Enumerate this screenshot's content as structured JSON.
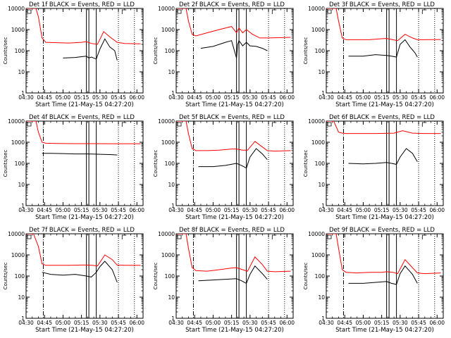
{
  "chart_data": [
    {
      "type": "line",
      "title": "Det 1f BLACK = Events, RED = LLD",
      "xlabel": "Start Time (21-May-15 04:27:20)",
      "ylabel": "Counts/sec",
      "yscale": "log",
      "ylim": [
        1,
        10000
      ],
      "xlim": [
        "04:30",
        "06:05"
      ],
      "grid": false,
      "x_ticks": [
        "04:30",
        "04:45",
        "05:00",
        "05:15",
        "05:30",
        "05:45",
        "06:00"
      ],
      "y_ticks": [
        "1",
        "10",
        "100",
        "1000",
        "10000"
      ],
      "vertical_markers": {
        "dashdot": [
          "04:44"
        ],
        "solid": [
          "05:19",
          "05:21",
          "05:27"
        ],
        "dotted": [
          "05:45",
          "05:58"
        ]
      },
      "series": [
        {
          "name": "Events",
          "color": "#000000",
          "x": [
            "05:00",
            "05:10",
            "05:15",
            "05:19",
            "05:21",
            "05:23",
            "05:27",
            "05:30",
            "05:34",
            "05:38",
            "05:42",
            "05:44"
          ],
          "values": [
            45,
            48,
            52,
            55,
            45,
            50,
            40,
            120,
            360,
            150,
            100,
            35
          ]
        },
        {
          "name": "LLD",
          "color": "#ff0000",
          "x": [
            "04:30",
            "04:38",
            "04:40",
            "04:43",
            "04:46",
            "04:55",
            "05:05",
            "05:15",
            "05:19",
            "05:23",
            "05:28",
            "05:33",
            "05:38",
            "05:44",
            "05:50",
            "06:03"
          ],
          "values": [
            10000,
            10000,
            4000,
            400,
            250,
            240,
            230,
            250,
            270,
            220,
            200,
            800,
            450,
            250,
            220,
            210
          ]
        }
      ]
    },
    {
      "type": "line",
      "title": "Det 2f BLACK = Events, RED = LLD",
      "xlabel": "Start Time (21-May-15 04:27:20)",
      "ylabel": "Counts/sec",
      "yscale": "log",
      "ylim": [
        1,
        10000
      ],
      "xlim": [
        "04:30",
        "06:05"
      ],
      "grid": false,
      "x_ticks": [
        "04:30",
        "04:45",
        "05:00",
        "05:15",
        "05:30",
        "05:45",
        "06:00"
      ],
      "y_ticks": [
        "1",
        "10",
        "100",
        "1000",
        "10000"
      ],
      "vertical_markers": {
        "dashdot": [
          "04:44"
        ],
        "solid": [
          "05:19",
          "05:21",
          "05:27"
        ],
        "dotted": [
          "05:45",
          "05:58"
        ]
      },
      "series": [
        {
          "name": "Events",
          "color": "#000000",
          "x": [
            "04:50",
            "05:00",
            "05:10",
            "05:15",
            "05:19",
            "05:20",
            "05:21",
            "05:24",
            "05:27",
            "05:30",
            "05:35",
            "05:40",
            "05:44"
          ],
          "values": [
            130,
            160,
            250,
            300,
            45,
            200,
            300,
            170,
            250,
            170,
            160,
            130,
            100
          ]
        },
        {
          "name": "LLD",
          "color": "#ff0000",
          "x": [
            "04:30",
            "04:38",
            "04:40",
            "04:43",
            "04:46",
            "04:55",
            "05:05",
            "05:15",
            "05:19",
            "05:21",
            "05:24",
            "05:27",
            "05:32",
            "05:38",
            "05:45",
            "06:03"
          ],
          "values": [
            10000,
            10000,
            2500,
            600,
            500,
            700,
            1000,
            1400,
            700,
            1200,
            700,
            1000,
            600,
            400,
            400,
            430
          ]
        }
      ]
    },
    {
      "type": "line",
      "title": "Det 3f BLACK = Events, RED = LLD",
      "xlabel": "Start Time (21-May-15 04:27:20)",
      "ylabel": "Counts/sec",
      "yscale": "log",
      "ylim": [
        1,
        10000
      ],
      "xlim": [
        "04:30",
        "06:05"
      ],
      "grid": false,
      "x_ticks": [
        "04:30",
        "04:45",
        "05:00",
        "05:15",
        "05:30",
        "05:45",
        "06:00"
      ],
      "y_ticks": [
        "1",
        "10",
        "100",
        "1000",
        "10000"
      ],
      "vertical_markers": {
        "dashdot": [
          "04:44"
        ],
        "solid": [
          "05:19",
          "05:21",
          "05:27"
        ],
        "dotted": [
          "05:45",
          "05:58"
        ]
      },
      "series": [
        {
          "name": "Events",
          "color": "#000000",
          "x": [
            "04:48",
            "05:00",
            "05:10",
            "05:19",
            "05:23",
            "05:27",
            "05:30",
            "05:34",
            "05:38",
            "05:42",
            "05:44"
          ],
          "values": [
            55,
            55,
            65,
            60,
            55,
            50,
            200,
            330,
            150,
            80,
            50
          ]
        },
        {
          "name": "LLD",
          "color": "#ff0000",
          "x": [
            "04:30",
            "04:38",
            "04:40",
            "04:43",
            "04:46",
            "04:55",
            "05:05",
            "05:15",
            "05:19",
            "05:24",
            "05:28",
            "05:34",
            "05:40",
            "05:44",
            "05:50",
            "06:03"
          ],
          "values": [
            10000,
            10000,
            2500,
            400,
            330,
            330,
            330,
            370,
            380,
            330,
            300,
            600,
            400,
            330,
            330,
            340
          ]
        }
      ]
    },
    {
      "type": "line",
      "title": "Det 4f BLACK = Events, RED = LLD",
      "xlabel": "Start Time (21-May-15 04:27:20)",
      "ylabel": "Counts/sec",
      "yscale": "log",
      "ylim": [
        1,
        10000
      ],
      "xlim": [
        "04:30",
        "06:05"
      ],
      "grid": false,
      "x_ticks": [
        "04:30",
        "04:45",
        "05:00",
        "05:15",
        "05:30",
        "05:45",
        "06:00"
      ],
      "y_ticks": [
        "1",
        "10",
        "100",
        "1000",
        "10000"
      ],
      "vertical_markers": {
        "dashdot": [
          "04:44"
        ],
        "solid": [
          "05:19",
          "05:21",
          "05:27"
        ],
        "dotted": [
          "05:45",
          "05:58"
        ]
      },
      "series": [
        {
          "name": "Events",
          "color": "#000000",
          "x": [
            "04:43",
            "04:50",
            "05:00",
            "05:10",
            "05:20",
            "05:30",
            "05:40",
            "05:44"
          ],
          "values": [
            300,
            300,
            290,
            280,
            280,
            270,
            260,
            250
          ]
        },
        {
          "name": "LLD",
          "color": "#ff0000",
          "x": [
            "04:30",
            "04:38",
            "04:40",
            "04:43",
            "04:46",
            "04:55",
            "05:10",
            "05:25",
            "05:40",
            "05:50",
            "06:03"
          ],
          "values": [
            10000,
            10000,
            3000,
            1000,
            900,
            880,
            860,
            860,
            850,
            850,
            850
          ]
        }
      ]
    },
    {
      "type": "line",
      "title": "Det 5f BLACK = Events, RED = LLD",
      "xlabel": "Start Time (21-May-15 04:27:20)",
      "ylabel": "Counts/sec",
      "yscale": "log",
      "ylim": [
        1,
        10000
      ],
      "xlim": [
        "04:30",
        "06:05"
      ],
      "grid": false,
      "x_ticks": [
        "04:30",
        "04:45",
        "05:00",
        "05:15",
        "05:30",
        "05:45",
        "06:00"
      ],
      "y_ticks": [
        "1",
        "10",
        "100",
        "1000",
        "10000"
      ],
      "vertical_markers": {
        "dashdot": [
          "04:44"
        ],
        "solid": [
          "05:19",
          "05:21",
          "05:27"
        ],
        "dotted": [
          "05:45",
          "05:58"
        ]
      },
      "series": [
        {
          "name": "Events",
          "color": "#000000",
          "x": [
            "04:48",
            "05:00",
            "05:10",
            "05:19",
            "05:23",
            "05:27",
            "05:30",
            "05:35",
            "05:40",
            "05:44"
          ],
          "values": [
            70,
            70,
            80,
            100,
            80,
            60,
            200,
            500,
            280,
            150
          ]
        },
        {
          "name": "LLD",
          "color": "#ff0000",
          "x": [
            "04:30",
            "04:38",
            "04:40",
            "04:43",
            "04:46",
            "04:55",
            "05:05",
            "05:15",
            "05:19",
            "05:24",
            "05:28",
            "05:34",
            "05:40",
            "05:44",
            "05:50",
            "06:03"
          ],
          "values": [
            10000,
            10000,
            2500,
            500,
            400,
            400,
            420,
            480,
            480,
            420,
            420,
            1100,
            600,
            400,
            380,
            400
          ]
        }
      ]
    },
    {
      "type": "line",
      "title": "Det 6f BLACK = Events, RED = LLD",
      "xlabel": "Start Time (21-May-15 04:27:20)",
      "ylabel": "Counts/sec",
      "yscale": "log",
      "ylim": [
        1,
        10000
      ],
      "xlim": [
        "04:30",
        "06:05"
      ],
      "grid": false,
      "x_ticks": [
        "04:30",
        "04:45",
        "05:00",
        "05:15",
        "05:30",
        "05:45",
        "06:00"
      ],
      "y_ticks": [
        "1",
        "10",
        "100",
        "1000",
        "10000"
      ],
      "vertical_markers": {
        "dashdot": [
          "04:44"
        ],
        "solid": [
          "05:19",
          "05:21",
          "05:27"
        ],
        "dotted": [
          "05:45",
          "05:58"
        ]
      },
      "series": [
        {
          "name": "Events",
          "color": "#000000",
          "x": [
            "04:48",
            "05:00",
            "05:10",
            "05:19",
            "05:23",
            "05:27",
            "05:30",
            "05:35",
            "05:40",
            "05:44"
          ],
          "values": [
            100,
            95,
            100,
            110,
            100,
            90,
            200,
            500,
            300,
            120
          ]
        },
        {
          "name": "LLD",
          "color": "#ff0000",
          "x": [
            "04:30",
            "04:36",
            "04:40",
            "04:43",
            "04:46",
            "04:55",
            "05:10",
            "05:25",
            "05:32",
            "05:40",
            "05:50",
            "06:03"
          ],
          "values": [
            10000,
            10000,
            3000,
            2700,
            2600,
            2600,
            2600,
            2700,
            3500,
            2700,
            2600,
            2600
          ]
        }
      ]
    },
    {
      "type": "line",
      "title": "Det 7f BLACK = Events, RED = LLD",
      "xlabel": "Start Time (21-May-15 04:27:20)",
      "ylabel": "Counts/sec",
      "yscale": "log",
      "ylim": [
        1,
        10000
      ],
      "xlim": [
        "04:30",
        "06:05"
      ],
      "grid": false,
      "x_ticks": [
        "04:30",
        "04:45",
        "05:00",
        "05:15",
        "05:30",
        "05:45",
        "06:00"
      ],
      "y_ticks": [
        "1",
        "10",
        "100",
        "1000",
        "10000"
      ],
      "vertical_markers": {
        "dashdot": [
          "04:44"
        ],
        "solid": [
          "05:19",
          "05:21",
          "05:27"
        ],
        "dotted": [
          "05:45",
          "05:58"
        ]
      },
      "series": [
        {
          "name": "Events",
          "color": "#000000",
          "x": [
            "04:43",
            "04:50",
            "05:00",
            "05:10",
            "05:19",
            "05:23",
            "05:27",
            "05:30",
            "05:34",
            "05:40",
            "05:44"
          ],
          "values": [
            150,
            120,
            110,
            120,
            100,
            90,
            150,
            280,
            500,
            200,
            50
          ]
        },
        {
          "name": "LLD",
          "color": "#ff0000",
          "x": [
            "04:30",
            "04:36",
            "04:40",
            "04:43",
            "04:46",
            "04:55",
            "05:05",
            "05:15",
            "05:19",
            "05:24",
            "05:28",
            "05:34",
            "05:40",
            "05:44",
            "05:50",
            "06:03"
          ],
          "values": [
            10000,
            10000,
            2500,
            380,
            320,
            320,
            320,
            330,
            330,
            320,
            300,
            1000,
            600,
            330,
            320,
            320
          ]
        }
      ]
    },
    {
      "type": "line",
      "title": "Det 8f BLACK = Events, RED = LLD",
      "xlabel": "Start Time (21-May-15 04:27:20)",
      "ylabel": "Counts/sec",
      "yscale": "log",
      "ylim": [
        1,
        10000
      ],
      "xlim": [
        "04:30",
        "06:05"
      ],
      "grid": false,
      "x_ticks": [
        "04:30",
        "04:45",
        "05:00",
        "05:15",
        "05:30",
        "05:45",
        "06:00"
      ],
      "y_ticks": [
        "1",
        "10",
        "100",
        "1000",
        "10000"
      ],
      "vertical_markers": {
        "dashdot": [
          "04:44"
        ],
        "solid": [
          "05:19",
          "05:21",
          "05:27"
        ],
        "dotted": [
          "05:45",
          "05:58"
        ]
      },
      "series": [
        {
          "name": "Events",
          "color": "#000000",
          "x": [
            "04:48",
            "05:00",
            "05:10",
            "05:19",
            "05:23",
            "05:27",
            "05:30",
            "05:34",
            "05:40",
            "05:44"
          ],
          "values": [
            60,
            65,
            70,
            75,
            60,
            45,
            120,
            300,
            130,
            70
          ]
        },
        {
          "name": "LLD",
          "color": "#ff0000",
          "x": [
            "04:30",
            "04:38",
            "04:40",
            "04:43",
            "04:46",
            "04:55",
            "05:05",
            "05:15",
            "05:19",
            "05:24",
            "05:28",
            "05:34",
            "05:40",
            "05:44",
            "05:50",
            "06:03"
          ],
          "values": [
            10000,
            10000,
            2000,
            250,
            180,
            170,
            200,
            240,
            250,
            200,
            170,
            800,
            350,
            170,
            160,
            170
          ]
        }
      ]
    },
    {
      "type": "line",
      "title": "Det 9f BLACK = Events, RED = LLD",
      "xlabel": "Start Time (21-May-15 04:27:20)",
      "ylabel": "Counts/sec",
      "yscale": "log",
      "ylim": [
        1,
        10000
      ],
      "xlim": [
        "04:30",
        "06:05"
      ],
      "grid": false,
      "x_ticks": [
        "04:30",
        "04:45",
        "05:00",
        "05:15",
        "05:30",
        "05:45",
        "06:00"
      ],
      "y_ticks": [
        "1",
        "10",
        "100",
        "1000",
        "10000"
      ],
      "vertical_markers": {
        "dashdot": [
          "04:44"
        ],
        "solid": [
          "05:19",
          "05:21",
          "05:27"
        ],
        "dotted": [
          "05:45",
          "05:58"
        ]
      },
      "series": [
        {
          "name": "Events",
          "color": "#000000",
          "x": [
            "04:48",
            "05:00",
            "05:10",
            "05:19",
            "05:23",
            "05:27",
            "05:30",
            "05:34",
            "05:40",
            "05:44"
          ],
          "values": [
            45,
            45,
            50,
            55,
            45,
            40,
            130,
            300,
            120,
            45
          ]
        },
        {
          "name": "LLD",
          "color": "#ff0000",
          "x": [
            "04:30",
            "04:38",
            "04:40",
            "04:43",
            "04:46",
            "04:55",
            "05:05",
            "05:15",
            "05:19",
            "05:24",
            "05:28",
            "05:34",
            "05:40",
            "05:44",
            "05:50",
            "06:03"
          ],
          "values": [
            10000,
            10000,
            2000,
            200,
            150,
            140,
            150,
            150,
            160,
            150,
            130,
            600,
            250,
            140,
            130,
            140
          ]
        }
      ]
    }
  ]
}
